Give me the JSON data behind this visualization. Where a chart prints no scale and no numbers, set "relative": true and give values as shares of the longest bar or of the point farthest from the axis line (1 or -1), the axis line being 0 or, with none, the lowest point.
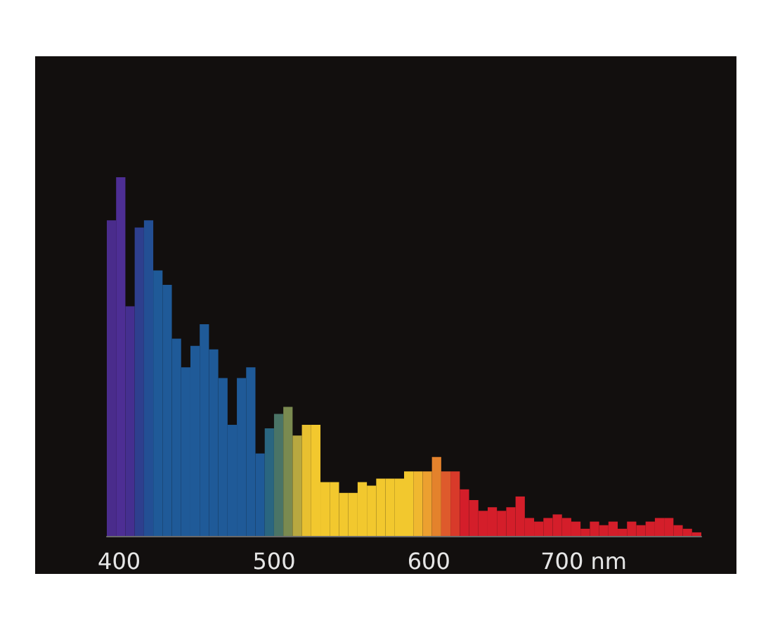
{
  "chart_data": {
    "type": "bar",
    "relative": true,
    "x": [
      395,
      401,
      407,
      413,
      419,
      425,
      431,
      437,
      443,
      449,
      455,
      461,
      467,
      473,
      479,
      485,
      491,
      497,
      503,
      509,
      515,
      521,
      527,
      533,
      539,
      545,
      551,
      557,
      563,
      569,
      575,
      581,
      587,
      593,
      599,
      605,
      611,
      617,
      623,
      629,
      635,
      641,
      647,
      653,
      659,
      665,
      671,
      677,
      683,
      689,
      695,
      701,
      707,
      713,
      719,
      725,
      731,
      737,
      743,
      749,
      755,
      761,
      767,
      773
    ],
    "values": [
      0.88,
      1.0,
      0.64,
      0.86,
      0.88,
      0.74,
      0.7,
      0.55,
      0.47,
      0.53,
      0.59,
      0.52,
      0.44,
      0.31,
      0.44,
      0.47,
      0.23,
      0.3,
      0.34,
      0.36,
      0.28,
      0.31,
      0.31,
      0.15,
      0.15,
      0.12,
      0.12,
      0.15,
      0.14,
      0.16,
      0.16,
      0.16,
      0.18,
      0.18,
      0.18,
      0.22,
      0.18,
      0.18,
      0.13,
      0.1,
      0.07,
      0.08,
      0.07,
      0.08,
      0.11,
      0.05,
      0.04,
      0.05,
      0.06,
      0.05,
      0.04,
      0.02,
      0.04,
      0.03,
      0.04,
      0.02,
      0.04,
      0.03,
      0.04,
      0.05,
      0.05,
      0.03,
      0.02,
      0.01
    ],
    "colors": [
      "#4a2c8c",
      "#4d2e94",
      "#452f90",
      "#2e3f8e",
      "#234f94",
      "#1f5a98",
      "#1f5a98",
      "#1f5a98",
      "#1f5a98",
      "#1f5a98",
      "#1f5a98",
      "#1f5a98",
      "#1f5a98",
      "#1f5a98",
      "#1f5a98",
      "#1f5a98",
      "#1f5a98",
      "#2a6680",
      "#4a7466",
      "#7a8a50",
      "#b8a840",
      "#e8c030",
      "#f2c82e",
      "#f2c82e",
      "#f2c82e",
      "#f2c82e",
      "#f2c82e",
      "#f2c82e",
      "#f2c82e",
      "#f2c82e",
      "#f2c82e",
      "#f2c82e",
      "#f2c82e",
      "#f0b830",
      "#eca030",
      "#e4822c",
      "#de5a2c",
      "#d83a2a",
      "#d41e2a",
      "#d41e2a",
      "#d41e2a",
      "#d41e2a",
      "#d41e2a",
      "#d41e2a",
      "#d41e2a",
      "#d41e2a",
      "#d41e2a",
      "#d41e2a",
      "#d41e2a",
      "#d41e2a",
      "#d41e2a",
      "#d41e2a",
      "#d41e2a",
      "#d41e2a",
      "#d41e2a",
      "#d41e2a",
      "#d41e2a",
      "#d41e2a",
      "#d41e2a",
      "#d41e2a",
      "#d41e2a",
      "#d41e2a",
      "#d41e2a",
      "#d41e2a"
    ],
    "xlim": [
      392,
      776
    ],
    "xticks": [
      400,
      500,
      600,
      {
        "value": 700,
        "label": "700 nm"
      }
    ]
  }
}
